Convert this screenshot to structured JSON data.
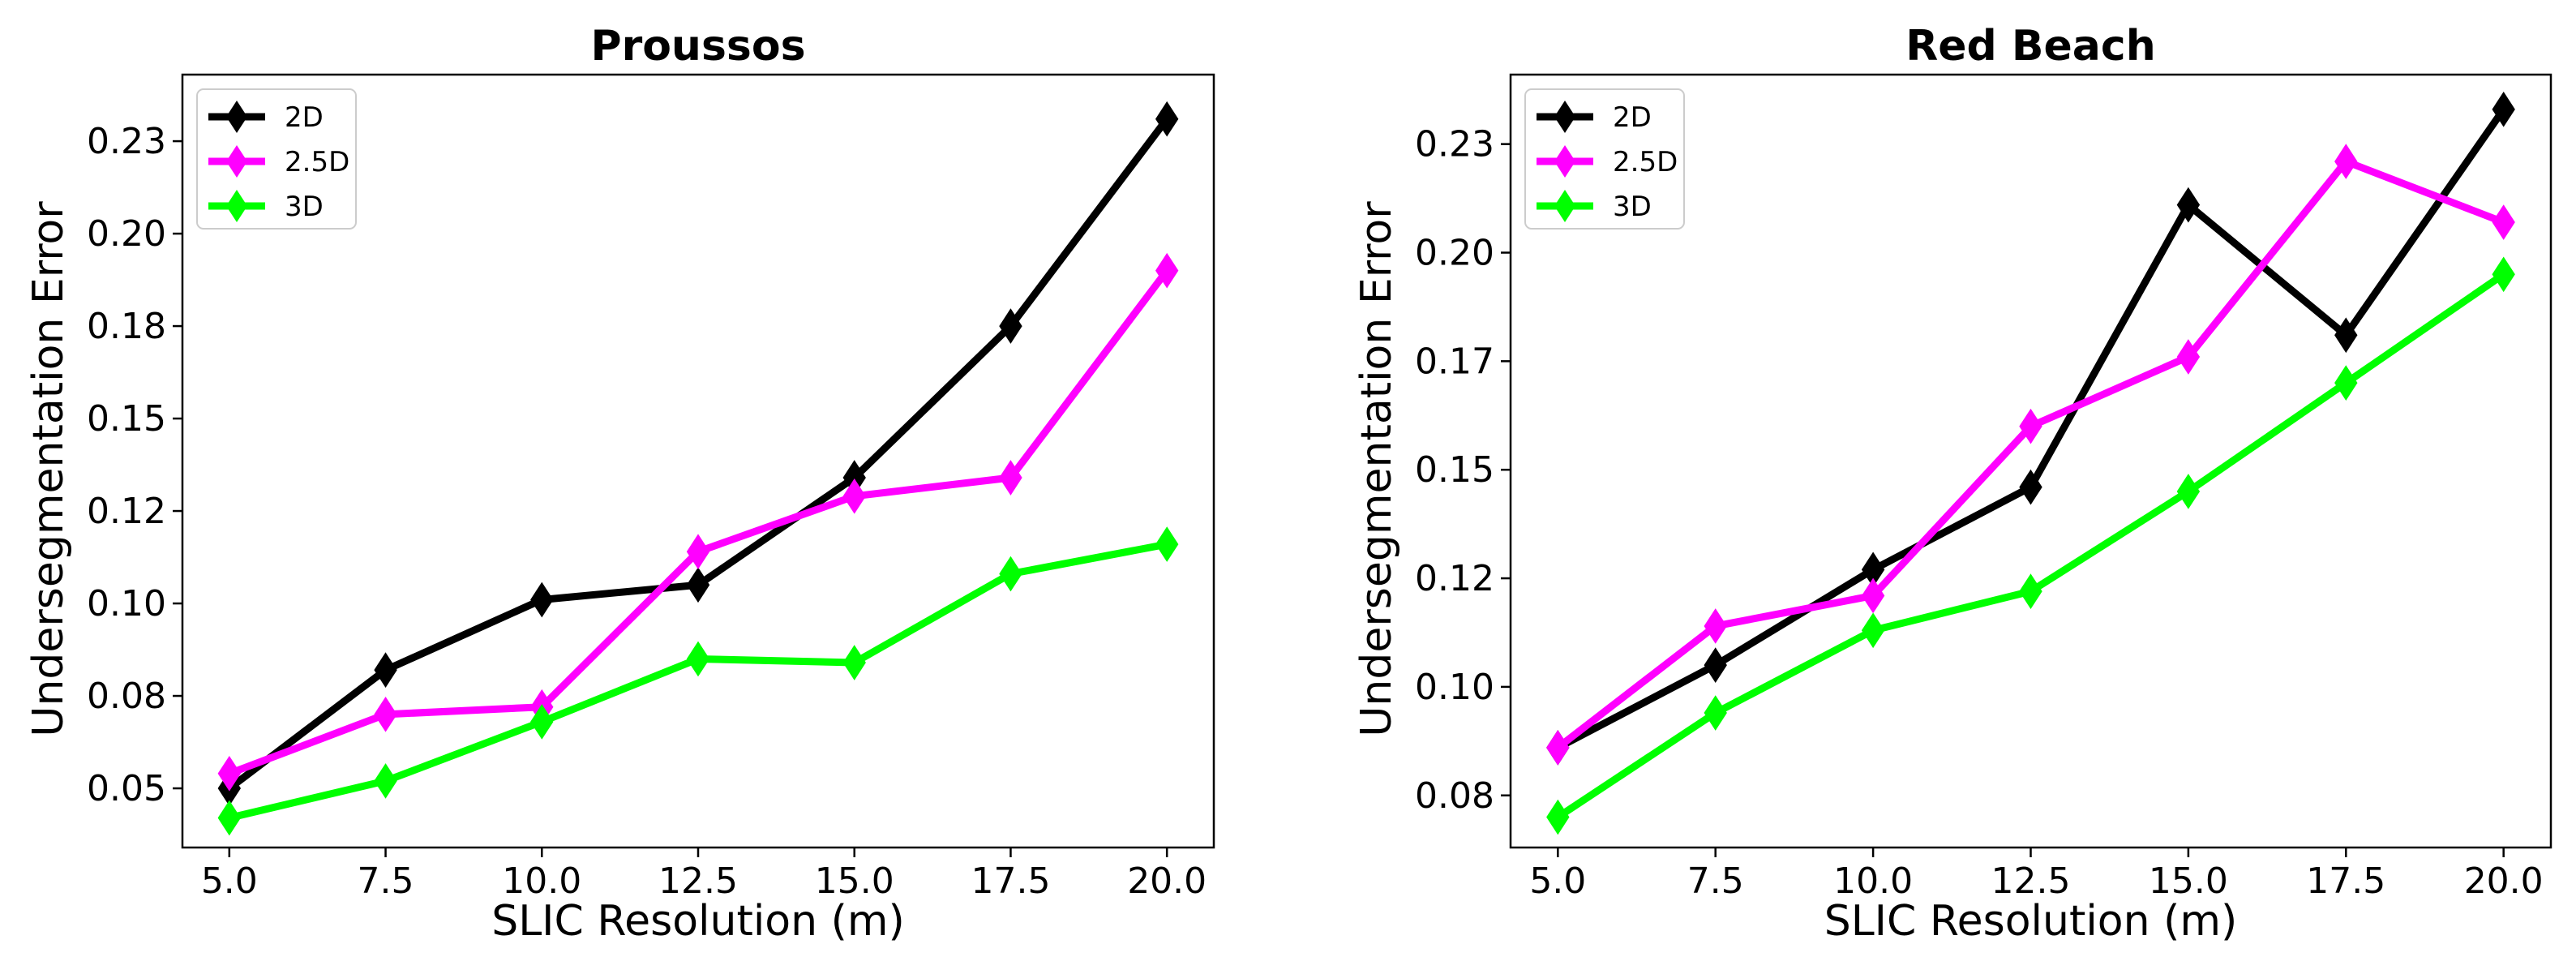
{
  "chart_data": [
    {
      "type": "line",
      "title": "Proussos",
      "xlabel": "SLIC Resolution (m)",
      "ylabel": "Undersegmentation Error",
      "x": [
        5.0,
        7.5,
        10.0,
        12.5,
        15.0,
        17.5,
        20.0
      ],
      "xlim": [
        4.25,
        20.75
      ],
      "ylim": [
        0.034,
        0.243
      ],
      "xticks": [
        "5.0",
        "7.5",
        "10.0",
        "12.5",
        "15.0",
        "17.5",
        "20.0"
      ],
      "yticks": [
        {
          "value": 0.05,
          "label": "0.05"
        },
        {
          "value": 0.075,
          "label": "0.08"
        },
        {
          "value": 0.1,
          "label": "0.10"
        },
        {
          "value": 0.125,
          "label": "0.12"
        },
        {
          "value": 0.15,
          "label": "0.15"
        },
        {
          "value": 0.175,
          "label": "0.18"
        },
        {
          "value": 0.2,
          "label": "0.20"
        },
        {
          "value": 0.225,
          "label": "0.23"
        }
      ],
      "legend": "top-left",
      "grid": false,
      "series": [
        {
          "name": "2D",
          "color": "#000000",
          "values": [
            0.05,
            0.082,
            0.101,
            0.105,
            0.134,
            0.175,
            0.231
          ]
        },
        {
          "name": "2.5D",
          "color": "#ff00ff",
          "values": [
            0.054,
            0.07,
            0.072,
            0.114,
            0.129,
            0.134,
            0.19
          ]
        },
        {
          "name": "3D",
          "color": "#00ff00",
          "values": [
            0.042,
            0.052,
            0.068,
            0.085,
            0.084,
            0.108,
            0.116
          ]
        }
      ]
    },
    {
      "type": "line",
      "title": "Red Beach",
      "xlabel": "SLIC Resolution (m)",
      "ylabel": "Undersegmentation Error",
      "x": [
        5.0,
        7.5,
        10.0,
        12.5,
        15.0,
        17.5,
        20.0
      ],
      "xlim": [
        4.25,
        20.75
      ],
      "ylim": [
        0.063,
        0.241
      ],
      "xticks": [
        "5.0",
        "7.5",
        "10.0",
        "12.5",
        "15.0",
        "17.5",
        "20.0"
      ],
      "yticks": [
        {
          "value": 0.075,
          "label": "0.08"
        },
        {
          "value": 0.1,
          "label": "0.10"
        },
        {
          "value": 0.125,
          "label": "0.12"
        },
        {
          "value": 0.15,
          "label": "0.15"
        },
        {
          "value": 0.175,
          "label": "0.17"
        },
        {
          "value": 0.2,
          "label": "0.20"
        },
        {
          "value": 0.225,
          "label": "0.23"
        }
      ],
      "legend": "top-left",
      "grid": false,
      "series": [
        {
          "name": "2D",
          "color": "#000000",
          "values": [
            0.086,
            0.105,
            0.127,
            0.146,
            0.211,
            0.181,
            0.233
          ]
        },
        {
          "name": "2.5D",
          "color": "#ff00ff",
          "values": [
            0.086,
            0.114,
            0.121,
            0.16,
            0.176,
            0.221,
            0.207
          ]
        },
        {
          "name": "3D",
          "color": "#00ff00",
          "values": [
            0.07,
            0.094,
            0.113,
            0.122,
            0.145,
            0.17,
            0.195
          ]
        }
      ]
    }
  ]
}
